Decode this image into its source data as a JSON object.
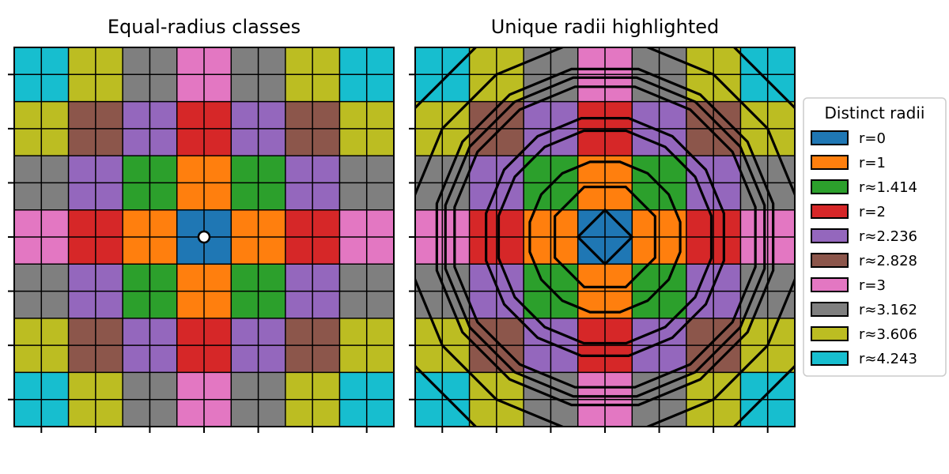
{
  "chart_data": [
    {
      "type": "heatmap",
      "title": "Equal-radius classes",
      "grid_size": 7,
      "cell_subdivision": 2,
      "center": [
        0,
        0
      ],
      "x_range": [
        -3.5,
        3.5
      ],
      "y_range": [
        -3.5,
        3.5
      ],
      "center_marker": true,
      "values": [
        [
          "r≈4.243",
          "r≈3.606",
          "r≈3.162",
          "r=3",
          "r≈3.162",
          "r≈3.606",
          "r≈4.243"
        ],
        [
          "r≈3.606",
          "r≈2.828",
          "r≈2.236",
          "r=2",
          "r≈2.236",
          "r≈2.828",
          "r≈3.606"
        ],
        [
          "r≈3.162",
          "r≈2.236",
          "r≈1.414",
          "r=1",
          "r≈1.414",
          "r≈2.236",
          "r≈3.162"
        ],
        [
          "r=3",
          "r=2",
          "r=1",
          "r=0",
          "r=1",
          "r=2",
          "r=3"
        ],
        [
          "r≈3.162",
          "r≈2.236",
          "r≈1.414",
          "r=1",
          "r≈1.414",
          "r≈2.236",
          "r≈3.162"
        ],
        [
          "r≈3.606",
          "r≈2.828",
          "r≈2.236",
          "r=2",
          "r≈2.236",
          "r≈2.828",
          "r≈3.606"
        ],
        [
          "r≈4.243",
          "r≈3.606",
          "r≈3.162",
          "r=3",
          "r≈3.162",
          "r≈3.606",
          "r≈4.243"
        ]
      ]
    },
    {
      "type": "heatmap",
      "title": "Unique radii highlighted",
      "grid_size": 7,
      "cell_subdivision": 2,
      "center": [
        0,
        0
      ],
      "x_range": [
        -3.5,
        3.5
      ],
      "y_range": [
        -3.5,
        3.5
      ],
      "contours": [
        0.5,
        1.0,
        1.414,
        2.0,
        2.236,
        2.828,
        3.0,
        3.162,
        3.606,
        4.243
      ],
      "legend": {
        "title": "Distinct radii",
        "placement": "right",
        "entries": [
          {
            "label": "r=0",
            "radius": 0,
            "color": "#1f77b4"
          },
          {
            "label": "r=1",
            "radius": 1,
            "color": "#ff7f0e"
          },
          {
            "label": "r≈1.414",
            "radius": 1.414,
            "color": "#2ca02c"
          },
          {
            "label": "r=2",
            "radius": 2,
            "color": "#d62728"
          },
          {
            "label": "r≈2.236",
            "radius": 2.236,
            "color": "#9467bd"
          },
          {
            "label": "r≈2.828",
            "radius": 2.828,
            "color": "#8c564b"
          },
          {
            "label": "r=3",
            "radius": 3,
            "color": "#e377c2"
          },
          {
            "label": "r≈3.162",
            "radius": 3.162,
            "color": "#7f7f7f"
          },
          {
            "label": "r≈3.606",
            "radius": 3.606,
            "color": "#bcbd22"
          },
          {
            "label": "r≈4.243",
            "radius": 4.243,
            "color": "#17becf"
          }
        ]
      }
    }
  ]
}
